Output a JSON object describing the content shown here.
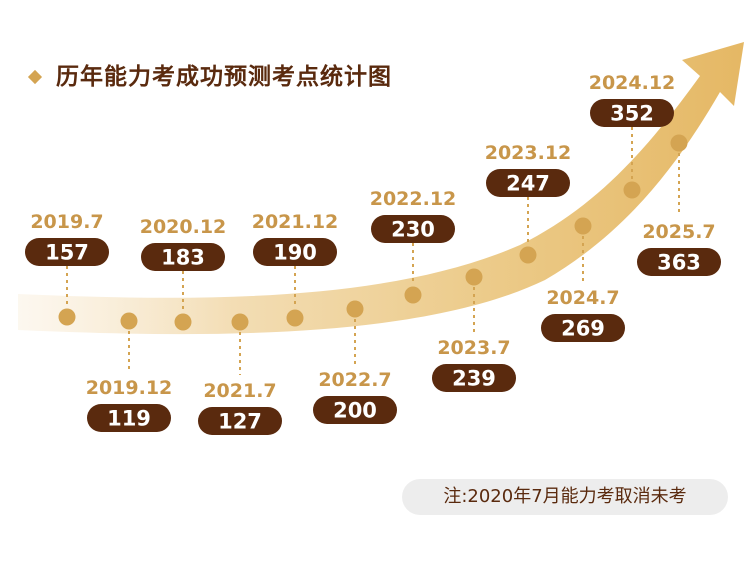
{
  "title": "历年能力考成功预测考点统计图",
  "note": "注:2020年7月能力考取消未考",
  "colors": {
    "accent": "#d4a452",
    "label_text": "#c8964a",
    "pill_fill": "#5a2a0e",
    "dot": "#d4a452",
    "ribbon": "#e8bd6a"
  },
  "chart_data": {
    "type": "line",
    "title": "历年能力考成功预测考点统计图",
    "categories": [
      "2019.7",
      "2019.12",
      "2020.12",
      "2021.7",
      "2021.12",
      "2022.7",
      "2022.12",
      "2023.7",
      "2023.12",
      "2024.7",
      "2024.12",
      "2025.7"
    ],
    "values": [
      157,
      119,
      183,
      127,
      190,
      200,
      230,
      239,
      247,
      269,
      352,
      363
    ],
    "label_positions": [
      "above",
      "below",
      "above",
      "below",
      "above",
      "below",
      "above",
      "below",
      "above",
      "below",
      "above",
      "below"
    ],
    "annotation": "注:2020年7月能力考取消未考",
    "xlabel": "",
    "ylabel": ""
  }
}
